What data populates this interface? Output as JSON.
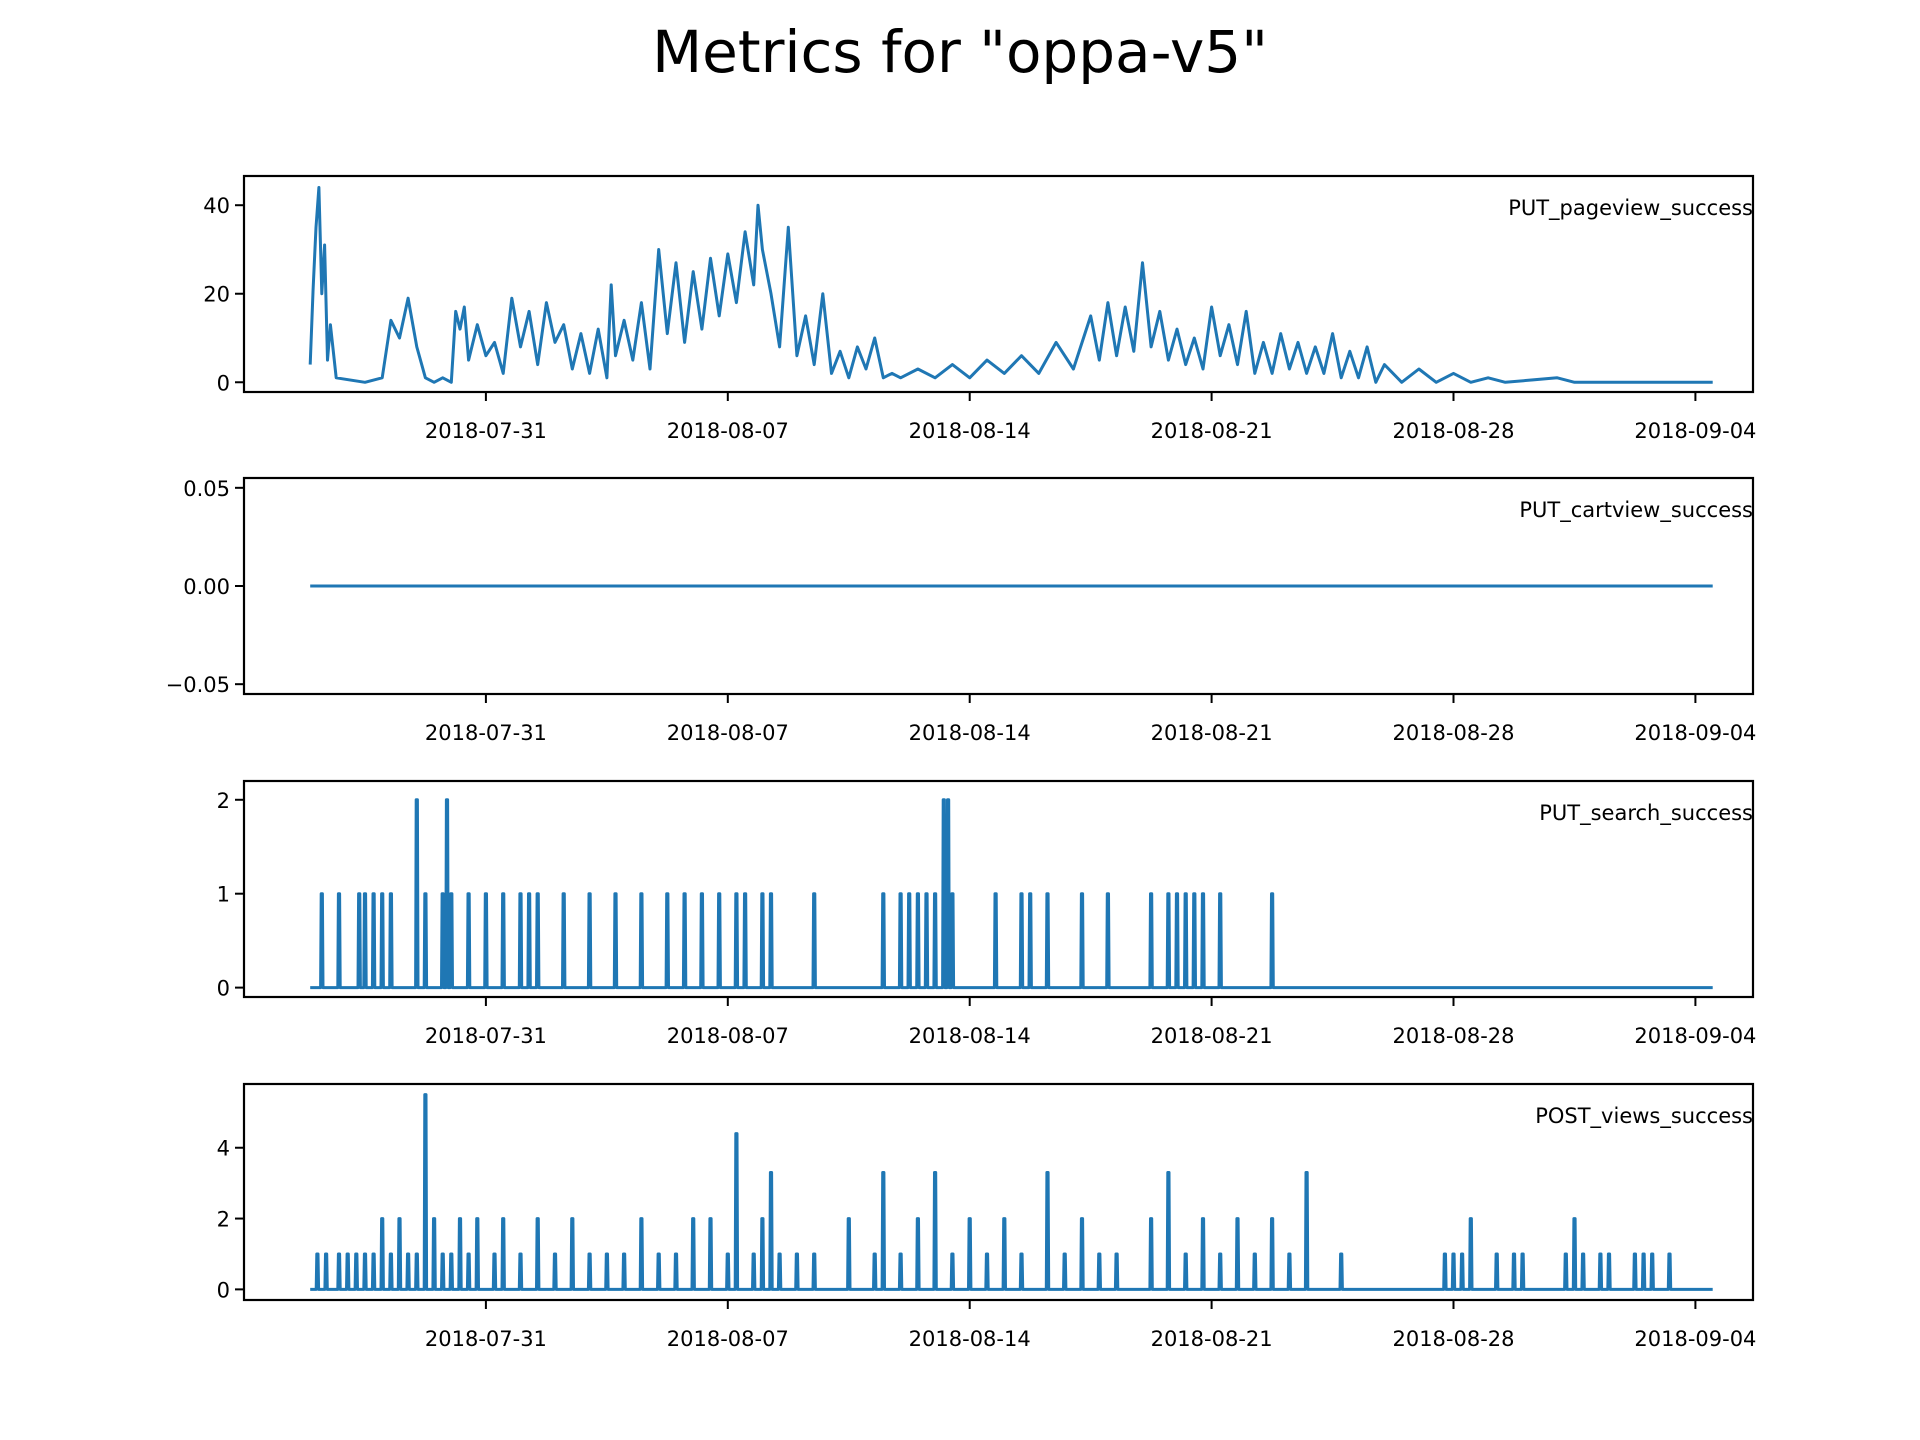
{
  "title": "Metrics for \"oppa-v5\"",
  "colors": {
    "line": "#1f77b4",
    "axis": "#000000",
    "background": "#ffffff"
  },
  "chart_data": [
    {
      "type": "line",
      "series_name": "PUT_pageview_success",
      "x_range": [
        "2018-07-24T00:00",
        "2018-09-05T16:00"
      ],
      "x_ticks": [
        "2018-07-31",
        "2018-08-07",
        "2018-08-14",
        "2018-08-21",
        "2018-08-28",
        "2018-09-04"
      ],
      "ylim": [
        -2.2,
        46.6
      ],
      "y_ticks": [
        0,
        20,
        40
      ],
      "y_tick_labels": [
        "0",
        "20",
        "40"
      ],
      "grid": false,
      "points": [
        [
          "2018-07-25T22:00",
          4
        ],
        [
          "2018-07-26T00:00",
          21
        ],
        [
          "2018-07-26T02:00",
          35
        ],
        [
          "2018-07-26T04:00",
          44
        ],
        [
          "2018-07-26T06:00",
          20
        ],
        [
          "2018-07-26T08:00",
          31
        ],
        [
          "2018-07-26T10:00",
          5
        ],
        [
          "2018-07-26T12:00",
          13
        ],
        [
          "2018-07-26T16:00",
          1
        ],
        [
          "2018-07-27T12:00",
          0
        ],
        [
          "2018-07-28T00:00",
          1
        ],
        [
          "2018-07-28T06:00",
          14
        ],
        [
          "2018-07-28T12:00",
          10
        ],
        [
          "2018-07-28T18:00",
          19
        ],
        [
          "2018-07-29T00:00",
          8
        ],
        [
          "2018-07-29T06:00",
          1
        ],
        [
          "2018-07-29T12:00",
          0
        ],
        [
          "2018-07-29T18:00",
          1
        ],
        [
          "2018-07-30T00:00",
          0
        ],
        [
          "2018-07-30T03:00",
          16
        ],
        [
          "2018-07-30T06:00",
          12
        ],
        [
          "2018-07-30T09:00",
          17
        ],
        [
          "2018-07-30T12:00",
          5
        ],
        [
          "2018-07-30T18:00",
          13
        ],
        [
          "2018-07-31T00:00",
          6
        ],
        [
          "2018-07-31T06:00",
          9
        ],
        [
          "2018-07-31T12:00",
          2
        ],
        [
          "2018-07-31T18:00",
          19
        ],
        [
          "2018-08-01T00:00",
          8
        ],
        [
          "2018-08-01T06:00",
          16
        ],
        [
          "2018-08-01T12:00",
          4
        ],
        [
          "2018-08-01T18:00",
          18
        ],
        [
          "2018-08-02T00:00",
          9
        ],
        [
          "2018-08-02T06:00",
          13
        ],
        [
          "2018-08-02T12:00",
          3
        ],
        [
          "2018-08-02T18:00",
          11
        ],
        [
          "2018-08-03T00:00",
          2
        ],
        [
          "2018-08-03T06:00",
          12
        ],
        [
          "2018-08-03T12:00",
          1
        ],
        [
          "2018-08-03T15:00",
          22
        ],
        [
          "2018-08-03T18:00",
          6
        ],
        [
          "2018-08-04T00:00",
          14
        ],
        [
          "2018-08-04T06:00",
          5
        ],
        [
          "2018-08-04T12:00",
          18
        ],
        [
          "2018-08-04T18:00",
          3
        ],
        [
          "2018-08-05T00:00",
          30
        ],
        [
          "2018-08-05T06:00",
          11
        ],
        [
          "2018-08-05T12:00",
          27
        ],
        [
          "2018-08-05T18:00",
          9
        ],
        [
          "2018-08-06T00:00",
          25
        ],
        [
          "2018-08-06T06:00",
          12
        ],
        [
          "2018-08-06T12:00",
          28
        ],
        [
          "2018-08-06T18:00",
          15
        ],
        [
          "2018-08-07T00:00",
          29
        ],
        [
          "2018-08-07T06:00",
          18
        ],
        [
          "2018-08-07T12:00",
          34
        ],
        [
          "2018-08-07T18:00",
          22
        ],
        [
          "2018-08-07T21:00",
          40
        ],
        [
          "2018-08-08T00:00",
          30
        ],
        [
          "2018-08-08T06:00",
          20
        ],
        [
          "2018-08-08T12:00",
          8
        ],
        [
          "2018-08-08T18:00",
          35
        ],
        [
          "2018-08-09T00:00",
          6
        ],
        [
          "2018-08-09T06:00",
          15
        ],
        [
          "2018-08-09T12:00",
          4
        ],
        [
          "2018-08-09T18:00",
          20
        ],
        [
          "2018-08-10T00:00",
          2
        ],
        [
          "2018-08-10T06:00",
          7
        ],
        [
          "2018-08-10T12:00",
          1
        ],
        [
          "2018-08-10T18:00",
          8
        ],
        [
          "2018-08-11T00:00",
          3
        ],
        [
          "2018-08-11T06:00",
          10
        ],
        [
          "2018-08-11T12:00",
          1
        ],
        [
          "2018-08-11T18:00",
          2
        ],
        [
          "2018-08-12T00:00",
          1
        ],
        [
          "2018-08-12T12:00",
          3
        ],
        [
          "2018-08-13T00:00",
          1
        ],
        [
          "2018-08-13T12:00",
          4
        ],
        [
          "2018-08-14T00:00",
          1
        ],
        [
          "2018-08-14T12:00",
          5
        ],
        [
          "2018-08-15T00:00",
          2
        ],
        [
          "2018-08-15T12:00",
          6
        ],
        [
          "2018-08-16T00:00",
          2
        ],
        [
          "2018-08-16T12:00",
          9
        ],
        [
          "2018-08-17T00:00",
          3
        ],
        [
          "2018-08-17T12:00",
          15
        ],
        [
          "2018-08-17T18:00",
          5
        ],
        [
          "2018-08-18T00:00",
          18
        ],
        [
          "2018-08-18T06:00",
          6
        ],
        [
          "2018-08-18T12:00",
          17
        ],
        [
          "2018-08-18T18:00",
          7
        ],
        [
          "2018-08-19T00:00",
          27
        ],
        [
          "2018-08-19T06:00",
          8
        ],
        [
          "2018-08-19T12:00",
          16
        ],
        [
          "2018-08-19T18:00",
          5
        ],
        [
          "2018-08-20T00:00",
          12
        ],
        [
          "2018-08-20T06:00",
          4
        ],
        [
          "2018-08-20T12:00",
          10
        ],
        [
          "2018-08-20T18:00",
          3
        ],
        [
          "2018-08-21T00:00",
          17
        ],
        [
          "2018-08-21T06:00",
          6
        ],
        [
          "2018-08-21T12:00",
          13
        ],
        [
          "2018-08-21T18:00",
          4
        ],
        [
          "2018-08-22T00:00",
          16
        ],
        [
          "2018-08-22T06:00",
          2
        ],
        [
          "2018-08-22T12:00",
          9
        ],
        [
          "2018-08-22T18:00",
          2
        ],
        [
          "2018-08-23T00:00",
          11
        ],
        [
          "2018-08-23T06:00",
          3
        ],
        [
          "2018-08-23T12:00",
          9
        ],
        [
          "2018-08-23T18:00",
          2
        ],
        [
          "2018-08-24T00:00",
          8
        ],
        [
          "2018-08-24T06:00",
          2
        ],
        [
          "2018-08-24T12:00",
          11
        ],
        [
          "2018-08-24T18:00",
          1
        ],
        [
          "2018-08-25T00:00",
          7
        ],
        [
          "2018-08-25T06:00",
          1
        ],
        [
          "2018-08-25T12:00",
          8
        ],
        [
          "2018-08-25T18:00",
          0
        ],
        [
          "2018-08-26T00:00",
          4
        ],
        [
          "2018-08-26T12:00",
          0
        ],
        [
          "2018-08-27T00:00",
          3
        ],
        [
          "2018-08-27T12:00",
          0
        ],
        [
          "2018-08-28T00:00",
          2
        ],
        [
          "2018-08-28T12:00",
          0
        ],
        [
          "2018-08-29T00:00",
          1
        ],
        [
          "2018-08-29T12:00",
          0
        ],
        [
          "2018-08-31T00:00",
          1
        ],
        [
          "2018-08-31T12:00",
          0
        ],
        [
          "2018-09-04T12:00",
          0
        ]
      ]
    },
    {
      "type": "line",
      "series_name": "PUT_cartview_success",
      "x_range": [
        "2018-07-24T00:00",
        "2018-09-05T16:00"
      ],
      "x_ticks": [
        "2018-07-31",
        "2018-08-07",
        "2018-08-14",
        "2018-08-21",
        "2018-08-28",
        "2018-09-04"
      ],
      "ylim": [
        -0.055,
        0.055
      ],
      "y_ticks": [
        -0.05,
        0,
        0.05
      ],
      "y_tick_labels": [
        "−0.05",
        "0.00",
        "0.05"
      ],
      "grid": false,
      "points": [
        [
          "2018-07-25T22:00",
          0
        ],
        [
          "2018-09-04T12:00",
          0
        ]
      ]
    },
    {
      "type": "line",
      "series_name": "PUT_search_success",
      "x_range": [
        "2018-07-24T00:00",
        "2018-09-05T16:00"
      ],
      "x_ticks": [
        "2018-07-31",
        "2018-08-07",
        "2018-08-14",
        "2018-08-21",
        "2018-08-28",
        "2018-09-04"
      ],
      "ylim": [
        -0.1,
        2.2
      ],
      "y_ticks": [
        0,
        1,
        2
      ],
      "y_tick_labels": [
        "0",
        "1",
        "2"
      ],
      "grid": false,
      "baseline": 0,
      "range": [
        "2018-07-25T22:00",
        "2018-09-04T12:00"
      ],
      "spikes": [
        [
          "2018-07-26T06:00",
          1
        ],
        [
          "2018-07-26T18:00",
          1
        ],
        [
          "2018-07-27T08:00",
          1
        ],
        [
          "2018-07-27T12:00",
          1
        ],
        [
          "2018-07-27T18:00",
          1
        ],
        [
          "2018-07-28T00:00",
          1
        ],
        [
          "2018-07-28T06:00",
          1
        ],
        [
          "2018-07-29T00:00",
          2
        ],
        [
          "2018-07-29T06:00",
          1
        ],
        [
          "2018-07-29T18:00",
          1
        ],
        [
          "2018-07-29T21:00",
          2
        ],
        [
          "2018-07-30T00:00",
          1
        ],
        [
          "2018-07-30T12:00",
          1
        ],
        [
          "2018-07-31T00:00",
          1
        ],
        [
          "2018-07-31T12:00",
          1
        ],
        [
          "2018-08-01T00:00",
          1
        ],
        [
          "2018-08-01T06:00",
          1
        ],
        [
          "2018-08-01T12:00",
          1
        ],
        [
          "2018-08-02T06:00",
          1
        ],
        [
          "2018-08-03T00:00",
          1
        ],
        [
          "2018-08-03T18:00",
          1
        ],
        [
          "2018-08-04T12:00",
          1
        ],
        [
          "2018-08-05T06:00",
          1
        ],
        [
          "2018-08-05T18:00",
          1
        ],
        [
          "2018-08-06T06:00",
          1
        ],
        [
          "2018-08-06T18:00",
          1
        ],
        [
          "2018-08-07T06:00",
          1
        ],
        [
          "2018-08-07T12:00",
          1
        ],
        [
          "2018-08-08T00:00",
          1
        ],
        [
          "2018-08-08T06:00",
          1
        ],
        [
          "2018-08-09T12:00",
          1
        ],
        [
          "2018-08-11T12:00",
          1
        ],
        [
          "2018-08-12T00:00",
          1
        ],
        [
          "2018-08-12T06:00",
          1
        ],
        [
          "2018-08-12T12:00",
          1
        ],
        [
          "2018-08-12T18:00",
          1
        ],
        [
          "2018-08-13T00:00",
          1
        ],
        [
          "2018-08-13T06:00",
          2
        ],
        [
          "2018-08-13T09:00",
          2
        ],
        [
          "2018-08-13T12:00",
          1
        ],
        [
          "2018-08-14T18:00",
          1
        ],
        [
          "2018-08-15T12:00",
          1
        ],
        [
          "2018-08-15T18:00",
          1
        ],
        [
          "2018-08-16T06:00",
          1
        ],
        [
          "2018-08-17T06:00",
          1
        ],
        [
          "2018-08-18T00:00",
          1
        ],
        [
          "2018-08-19T06:00",
          1
        ],
        [
          "2018-08-19T18:00",
          1
        ],
        [
          "2018-08-20T00:00",
          1
        ],
        [
          "2018-08-20T06:00",
          1
        ],
        [
          "2018-08-20T12:00",
          1
        ],
        [
          "2018-08-20T18:00",
          1
        ],
        [
          "2018-08-21T06:00",
          1
        ],
        [
          "2018-08-22T18:00",
          1
        ]
      ]
    },
    {
      "type": "line",
      "series_name": "POST_views_success",
      "x_range": [
        "2018-07-24T00:00",
        "2018-09-05T16:00"
      ],
      "x_ticks": [
        "2018-07-31",
        "2018-08-07",
        "2018-08-14",
        "2018-08-21",
        "2018-08-28",
        "2018-09-04"
      ],
      "ylim": [
        -0.3,
        5.8
      ],
      "y_ticks": [
        0,
        2,
        4
      ],
      "y_tick_labels": [
        "0",
        "2",
        "4"
      ],
      "grid": false,
      "baseline": 0,
      "range": [
        "2018-07-25T22:00",
        "2018-09-04T12:00"
      ],
      "spikes": [
        [
          "2018-07-26T03:00",
          1
        ],
        [
          "2018-07-26T09:00",
          1
        ],
        [
          "2018-07-26T18:00",
          1
        ],
        [
          "2018-07-27T00:00",
          1
        ],
        [
          "2018-07-27T06:00",
          1
        ],
        [
          "2018-07-27T12:00",
          1
        ],
        [
          "2018-07-27T18:00",
          1
        ],
        [
          "2018-07-28T00:00",
          2
        ],
        [
          "2018-07-28T06:00",
          1
        ],
        [
          "2018-07-28T12:00",
          2
        ],
        [
          "2018-07-28T18:00",
          1
        ],
        [
          "2018-07-29T00:00",
          1
        ],
        [
          "2018-07-29T06:00",
          5.5
        ],
        [
          "2018-07-29T12:00",
          2
        ],
        [
          "2018-07-29T18:00",
          1
        ],
        [
          "2018-07-30T00:00",
          1
        ],
        [
          "2018-07-30T06:00",
          2
        ],
        [
          "2018-07-30T12:00",
          1
        ],
        [
          "2018-07-30T18:00",
          2
        ],
        [
          "2018-07-31T06:00",
          1
        ],
        [
          "2018-07-31T12:00",
          2
        ],
        [
          "2018-08-01T00:00",
          1
        ],
        [
          "2018-08-01T12:00",
          2
        ],
        [
          "2018-08-02T00:00",
          1
        ],
        [
          "2018-08-02T12:00",
          2
        ],
        [
          "2018-08-03T00:00",
          1
        ],
        [
          "2018-08-03T12:00",
          1
        ],
        [
          "2018-08-04T00:00",
          1
        ],
        [
          "2018-08-04T12:00",
          2
        ],
        [
          "2018-08-05T00:00",
          1
        ],
        [
          "2018-08-05T12:00",
          1
        ],
        [
          "2018-08-06T00:00",
          2
        ],
        [
          "2018-08-06T12:00",
          2
        ],
        [
          "2018-08-07T00:00",
          1
        ],
        [
          "2018-08-07T06:00",
          4.4
        ],
        [
          "2018-08-07T18:00",
          1
        ],
        [
          "2018-08-08T00:00",
          2
        ],
        [
          "2018-08-08T06:00",
          3.3
        ],
        [
          "2018-08-08T12:00",
          1
        ],
        [
          "2018-08-09T00:00",
          1
        ],
        [
          "2018-08-09T12:00",
          1
        ],
        [
          "2018-08-10T12:00",
          2
        ],
        [
          "2018-08-11T06:00",
          1
        ],
        [
          "2018-08-11T12:00",
          3.3
        ],
        [
          "2018-08-12T00:00",
          1
        ],
        [
          "2018-08-12T12:00",
          2
        ],
        [
          "2018-08-13T00:00",
          3.3
        ],
        [
          "2018-08-13T12:00",
          1
        ],
        [
          "2018-08-14T00:00",
          2
        ],
        [
          "2018-08-14T12:00",
          1
        ],
        [
          "2018-08-15T00:00",
          2
        ],
        [
          "2018-08-15T12:00",
          1
        ],
        [
          "2018-08-16T06:00",
          3.3
        ],
        [
          "2018-08-16T18:00",
          1
        ],
        [
          "2018-08-17T06:00",
          2
        ],
        [
          "2018-08-17T18:00",
          1
        ],
        [
          "2018-08-18T06:00",
          1
        ],
        [
          "2018-08-19T06:00",
          2
        ],
        [
          "2018-08-19T18:00",
          3.3
        ],
        [
          "2018-08-20T06:00",
          1
        ],
        [
          "2018-08-20T18:00",
          2
        ],
        [
          "2018-08-21T06:00",
          1
        ],
        [
          "2018-08-21T18:00",
          2
        ],
        [
          "2018-08-22T06:00",
          1
        ],
        [
          "2018-08-22T18:00",
          2
        ],
        [
          "2018-08-23T06:00",
          1
        ],
        [
          "2018-08-23T18:00",
          3.3
        ],
        [
          "2018-08-24T18:00",
          1
        ],
        [
          "2018-08-27T18:00",
          1
        ],
        [
          "2018-08-28T00:00",
          1
        ],
        [
          "2018-08-28T06:00",
          1
        ],
        [
          "2018-08-28T12:00",
          2
        ],
        [
          "2018-08-29T06:00",
          1
        ],
        [
          "2018-08-29T18:00",
          1
        ],
        [
          "2018-08-30T00:00",
          1
        ],
        [
          "2018-08-31T06:00",
          1
        ],
        [
          "2018-08-31T12:00",
          2
        ],
        [
          "2018-08-31T18:00",
          1
        ],
        [
          "2018-09-01T06:00",
          1
        ],
        [
          "2018-09-01T12:00",
          1
        ],
        [
          "2018-09-02T06:00",
          1
        ],
        [
          "2018-09-02T12:00",
          1
        ],
        [
          "2018-09-02T18:00",
          1
        ],
        [
          "2018-09-03T06:00",
          1
        ]
      ]
    }
  ]
}
